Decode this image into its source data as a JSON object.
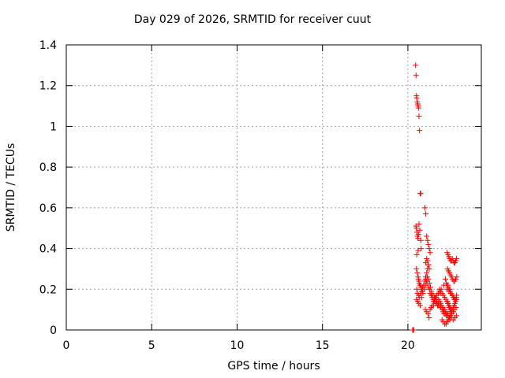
{
  "chart_data": {
    "type": "scatter",
    "title": "Day 029 of 2026, SRMTID for receiver cuut",
    "xlabel": "GPS time / hours",
    "ylabel": "SRMTID / TECUs",
    "xlim": [
      0,
      24.3
    ],
    "ylim": [
      0,
      1.4
    ],
    "xticks": [
      0,
      5,
      10,
      15,
      20
    ],
    "xtick_labels": [
      "0",
      "5",
      "10",
      "15",
      "20"
    ],
    "yticks": [
      0,
      0.2,
      0.4,
      0.6,
      0.8,
      1.0,
      1.2,
      1.4
    ],
    "ytick_labels": [
      "0",
      "0.2",
      "0.4",
      "0.6",
      "0.8",
      "1",
      "1.2",
      "1.4"
    ],
    "grid": true,
    "marker": "+",
    "color": "#ff0000",
    "series": [
      {
        "name": "SRMTID",
        "x": [
          20.28,
          20.3,
          20.32,
          20.34,
          20.45,
          20.48,
          20.5,
          20.52,
          20.55,
          20.58,
          20.6,
          20.62,
          20.65,
          20.68,
          20.72,
          20.75,
          20.47,
          20.5,
          20.53,
          20.56,
          20.59,
          20.62,
          20.65,
          20.7,
          20.76,
          20.78,
          20.52,
          20.6,
          20.5,
          20.55,
          20.6,
          20.62,
          20.64,
          20.66,
          20.7,
          20.74,
          20.78,
          20.82,
          20.86,
          20.52,
          20.56,
          20.62,
          20.68,
          20.74,
          20.8,
          20.86,
          20.92,
          20.98,
          21.04,
          21.1,
          21.15,
          21.2,
          20.5,
          20.58,
          20.64,
          20.72,
          20.8,
          20.88,
          20.96,
          21.02,
          21.08,
          21.14,
          21.2,
          21.26,
          21.32,
          21.38,
          21.0,
          21.05,
          21.1,
          21.15,
          21.2,
          21.25,
          21.3,
          21.1,
          21.15,
          21.05,
          21.2,
          21.25,
          21.05,
          21.12,
          21.2,
          21.26,
          21.3,
          21.36,
          21.42,
          21.48,
          21.55,
          21.62,
          21.68,
          21.74,
          21.8,
          21.02,
          21.1,
          21.18,
          21.24,
          21.3,
          21.36,
          21.42,
          21.5,
          21.58,
          21.64,
          21.7,
          21.78,
          21.84,
          21.4,
          21.48,
          21.55,
          21.62,
          21.7,
          21.78,
          21.85,
          21.92,
          22.0,
          22.06,
          22.12,
          22.18,
          22.24,
          21.8,
          21.86,
          21.92,
          21.98,
          22.04,
          22.1,
          22.16,
          22.22,
          22.28,
          22.34,
          22.4,
          22.46,
          21.85,
          21.92,
          22.0,
          22.08,
          22.15,
          22.22,
          22.3,
          22.36,
          22.42,
          22.48,
          22.55,
          22.0,
          22.08,
          22.16,
          22.24,
          22.3,
          22.36,
          22.42,
          22.5,
          22.58,
          22.66,
          22.74,
          22.82,
          22.3,
          22.35,
          22.4,
          22.45,
          22.5,
          22.55,
          22.6,
          22.65,
          22.7,
          22.75,
          22.8,
          22.85,
          22.32,
          22.38,
          22.44,
          22.5,
          22.56,
          22.62,
          22.68,
          22.74,
          22.8,
          22.86,
          22.3,
          22.36,
          22.42,
          22.48,
          22.54,
          22.6,
          22.66,
          22.72,
          22.78,
          22.84,
          22.3,
          22.34,
          22.38,
          22.42,
          22.46,
          22.5,
          22.55,
          22.6,
          22.65,
          22.7,
          22.75,
          22.8,
          22.85,
          22.35,
          22.45,
          22.55,
          22.65,
          22.75,
          22.85,
          22.3,
          22.4,
          22.5,
          22.6,
          22.7,
          22.8,
          22.85,
          22.2,
          22.25,
          22.35,
          22.45,
          21.9,
          21.95,
          22.1,
          21.6,
          21.7,
          21.5
        ],
        "y": [
          0.0,
          0.0,
          0.0,
          0.0,
          1.3,
          1.25,
          1.15,
          1.14,
          1.12,
          1.11,
          1.1,
          1.09,
          1.05,
          0.98,
          0.67,
          0.67,
          0.51,
          0.5,
          0.48,
          0.46,
          0.45,
          0.47,
          0.52,
          0.49,
          0.44,
          0.4,
          0.37,
          0.39,
          0.3,
          0.28,
          0.26,
          0.25,
          0.24,
          0.23,
          0.22,
          0.22,
          0.21,
          0.2,
          0.19,
          0.2,
          0.18,
          0.17,
          0.16,
          0.18,
          0.19,
          0.21,
          0.22,
          0.24,
          0.26,
          0.28,
          0.3,
          0.32,
          0.15,
          0.14,
          0.13,
          0.12,
          0.16,
          0.18,
          0.2,
          0.22,
          0.24,
          0.26,
          0.25,
          0.23,
          0.21,
          0.19,
          0.6,
          0.57,
          0.46,
          0.44,
          0.42,
          0.4,
          0.38,
          0.35,
          0.34,
          0.33,
          0.32,
          0.3,
          0.25,
          0.23,
          0.21,
          0.2,
          0.18,
          0.17,
          0.16,
          0.15,
          0.14,
          0.13,
          0.13,
          0.12,
          0.12,
          0.1,
          0.09,
          0.08,
          0.06,
          0.1,
          0.11,
          0.12,
          0.14,
          0.15,
          0.16,
          0.17,
          0.18,
          0.19,
          0.18,
          0.17,
          0.16,
          0.15,
          0.14,
          0.13,
          0.12,
          0.11,
          0.1,
          0.09,
          0.08,
          0.08,
          0.07,
          0.15,
          0.14,
          0.13,
          0.12,
          0.11,
          0.1,
          0.1,
          0.09,
          0.08,
          0.07,
          0.06,
          0.05,
          0.2,
          0.19,
          0.18,
          0.17,
          0.16,
          0.15,
          0.14,
          0.13,
          0.12,
          0.11,
          0.1,
          0.05,
          0.04,
          0.03,
          0.03,
          0.04,
          0.05,
          0.06,
          0.07,
          0.08,
          0.09,
          0.1,
          0.11,
          0.38,
          0.37,
          0.36,
          0.35,
          0.34,
          0.34,
          0.35,
          0.34,
          0.33,
          0.33,
          0.34,
          0.35,
          0.3,
          0.29,
          0.28,
          0.27,
          0.26,
          0.25,
          0.24,
          0.24,
          0.25,
          0.26,
          0.22,
          0.21,
          0.2,
          0.19,
          0.18,
          0.17,
          0.16,
          0.15,
          0.15,
          0.16,
          0.14,
          0.13,
          0.12,
          0.11,
          0.1,
          0.09,
          0.09,
          0.1,
          0.11,
          0.12,
          0.13,
          0.14,
          0.15,
          0.08,
          0.07,
          0.06,
          0.05,
          0.06,
          0.07,
          0.2,
          0.19,
          0.18,
          0.17,
          0.16,
          0.15,
          0.17,
          0.25,
          0.23,
          0.22,
          0.2,
          0.18,
          0.2,
          0.22,
          0.16,
          0.14,
          0.12
        ]
      }
    ]
  }
}
